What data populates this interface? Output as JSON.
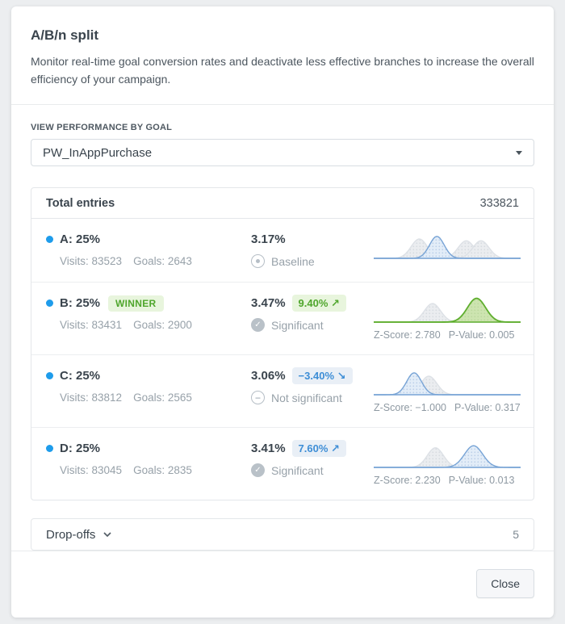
{
  "theme": {
    "accent-blue": "#1e9ceb",
    "text-dark": "#3a444d",
    "text-gray": "#97a1a9",
    "green-text": "#4fa62c",
    "green-bg": "#e8f5dd",
    "blue-badge-text": "#3e8ed6",
    "blue-badge-bg": "#e9eff6",
    "border": "#e4e7ea"
  },
  "dialog": {
    "title": "A/B/n split",
    "description": "Monitor real-time goal conversion rates and deactivate less effective branches to increase the overall efficiency of your campaign.",
    "goal_label": "VIEW PERFORMANCE BY GOAL",
    "goal_value": "PW_InAppPurchase",
    "total_entries_label": "Total entries",
    "total_entries_value": "333821",
    "dropoffs_label": "Drop-offs",
    "dropoffs_value": "5",
    "close_label": "Close"
  },
  "chart_colors": {
    "blue": {
      "stroke": "#78a4d6",
      "fill": "#e3edf8",
      "dot": "#bcd0e9"
    },
    "gray": {
      "stroke": "#dde1e6",
      "fill": "#ebedf0",
      "dot": "#d7dbe0"
    },
    "green": {
      "stroke": "#5fae2e",
      "fill": "#cde4b0",
      "dot": "#bcd99e"
    }
  },
  "branches": [
    {
      "name": "A: 25%",
      "winner_label": null,
      "visits": "Visits: 83523",
      "goals": "Goals: 2643",
      "rate": "3.17%",
      "delta": null,
      "delta_variant": null,
      "status": "Baseline",
      "status_icon": "baseline",
      "zscore": null,
      "pvalue": null,
      "chart": {
        "baseline": "blue",
        "curves": [
          {
            "color": "gray",
            "center": 0.31,
            "sigma": 0.055,
            "height": 0.75
          },
          {
            "color": "gray",
            "center": 0.63,
            "sigma": 0.055,
            "height": 0.68
          },
          {
            "color": "gray",
            "center": 0.73,
            "sigma": 0.055,
            "height": 0.68
          },
          {
            "color": "blue",
            "center": 0.43,
            "sigma": 0.05,
            "height": 0.85
          }
        ]
      }
    },
    {
      "name": "B: 25%",
      "winner_label": "WINNER",
      "visits": "Visits: 83431",
      "goals": "Goals: 2900",
      "rate": "3.47%",
      "delta": "9.40% ↗",
      "delta_variant": "green",
      "status": "Significant",
      "status_icon": "check",
      "zscore": "Z-Score: 2.780",
      "pvalue": "P-Value: 0.005",
      "chart": {
        "baseline": "green",
        "curves": [
          {
            "color": "gray",
            "center": 0.4,
            "sigma": 0.055,
            "height": 0.72
          },
          {
            "color": "green",
            "center": 0.7,
            "sigma": 0.062,
            "height": 0.92
          }
        ]
      }
    },
    {
      "name": "C: 25%",
      "winner_label": null,
      "visits": "Visits: 83812",
      "goals": "Goals: 2565",
      "rate": "3.06%",
      "delta": "−3.40% ↘",
      "delta_variant": "blue",
      "status": "Not significant",
      "status_icon": "minus",
      "zscore": "Z-Score: −1.000",
      "pvalue": "P-Value: 0.317",
      "chart": {
        "baseline": "blue",
        "curves": [
          {
            "color": "gray",
            "center": 0.375,
            "sigma": 0.055,
            "height": 0.72
          },
          {
            "color": "blue",
            "center": 0.275,
            "sigma": 0.05,
            "height": 0.85
          }
        ]
      }
    },
    {
      "name": "D: 25%",
      "winner_label": null,
      "visits": "Visits: 83045",
      "goals": "Goals: 2835",
      "rate": "3.41%",
      "delta": "7.60% ↗",
      "delta_variant": "blue",
      "status": "Significant",
      "status_icon": "check",
      "zscore": "Z-Score: 2.230",
      "pvalue": "P-Value: 0.013",
      "chart": {
        "baseline": "blue",
        "curves": [
          {
            "color": "gray",
            "center": 0.42,
            "sigma": 0.055,
            "height": 0.76
          },
          {
            "color": "blue",
            "center": 0.68,
            "sigma": 0.062,
            "height": 0.84
          }
        ]
      }
    }
  ]
}
